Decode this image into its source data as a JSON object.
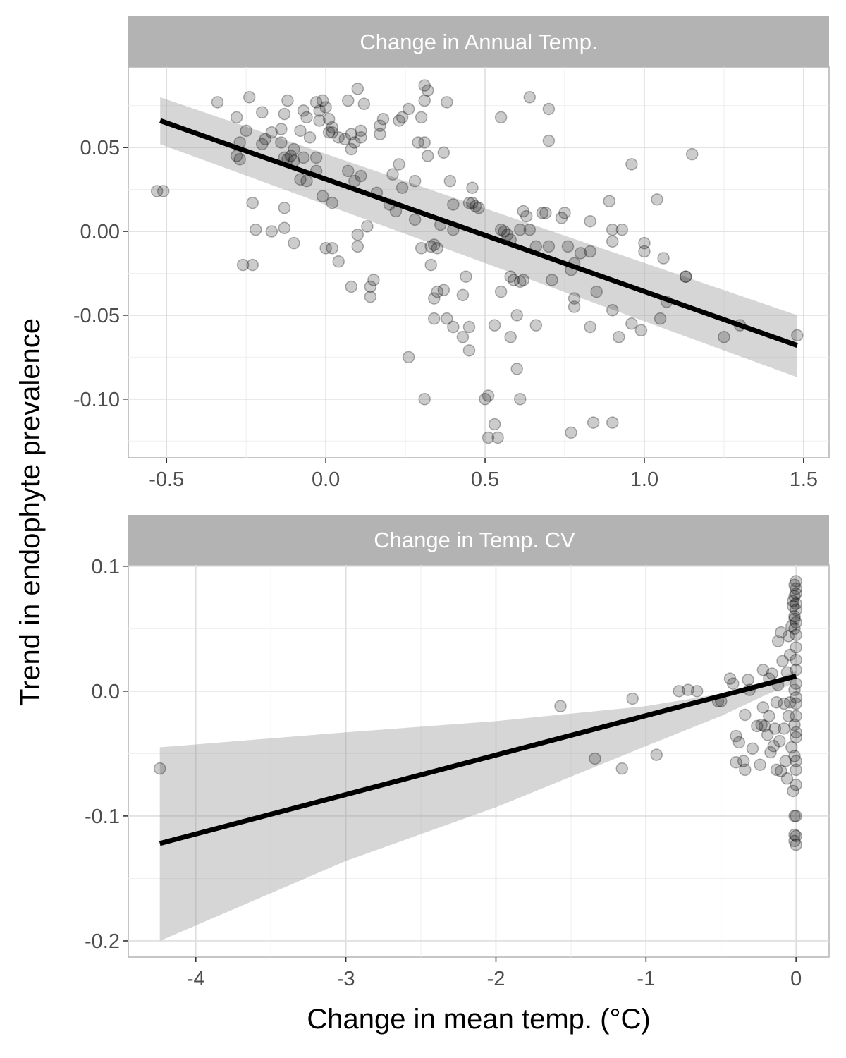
{
  "axes": {
    "ylabel": "Trend in endophyte prevalence",
    "xlabel": "Change in mean temp. (°C)"
  },
  "chart_data": [
    {
      "type": "scatter",
      "strip_title": "Change in Annual Temp.",
      "xlim": [
        -0.62,
        1.58
      ],
      "ylim": [
        -0.135,
        0.098
      ],
      "xticks": [
        -0.5,
        0.0,
        0.5,
        1.0,
        1.5
      ],
      "xtick_labels": [
        "-0.5",
        "0.0",
        "0.5",
        "1.0",
        "1.5"
      ],
      "yticks": [
        -0.1,
        -0.05,
        0.0,
        0.05
      ],
      "ytick_labels": [
        "-0.10",
        "-0.05",
        "0.00",
        "0.05"
      ],
      "fit": {
        "x": [
          -0.52,
          1.48
        ],
        "y": [
          0.066,
          -0.068
        ]
      },
      "ribbon": {
        "x": [
          -0.52,
          1.48
        ],
        "upper": [
          0.08,
          -0.05
        ],
        "lower": [
          0.052,
          -0.087
        ]
      },
      "points": [
        [
          -0.53,
          0.024
        ],
        [
          -0.51,
          0.024
        ],
        [
          -0.34,
          0.077
        ],
        [
          -0.28,
          0.068
        ],
        [
          -0.27,
          0.053
        ],
        [
          -0.25,
          0.06
        ],
        [
          -0.24,
          0.08
        ],
        [
          -0.28,
          0.045
        ],
        [
          -0.27,
          0.043
        ],
        [
          -0.23,
          0.017
        ],
        [
          -0.22,
          0.001
        ],
        [
          -0.26,
          -0.02
        ],
        [
          -0.23,
          -0.02
        ],
        [
          -0.2,
          0.071
        ],
        [
          -0.2,
          0.052
        ],
        [
          -0.19,
          0.055
        ],
        [
          -0.17,
          0.059
        ],
        [
          -0.17,
          0.0
        ],
        [
          -0.14,
          0.061
        ],
        [
          -0.13,
          0.07
        ],
        [
          -0.12,
          0.078
        ],
        [
          -0.11,
          0.045
        ],
        [
          -0.1,
          0.049
        ],
        [
          -0.14,
          0.053
        ],
        [
          -0.13,
          0.044
        ],
        [
          -0.12,
          0.043
        ],
        [
          -0.1,
          0.042
        ],
        [
          -0.13,
          0.014
        ],
        [
          -0.13,
          0.002
        ],
        [
          -0.1,
          -0.007
        ],
        [
          -0.08,
          0.06
        ],
        [
          -0.07,
          0.072
        ],
        [
          -0.06,
          0.068
        ],
        [
          -0.05,
          0.056
        ],
        [
          -0.03,
          0.077
        ],
        [
          -0.02,
          0.072
        ],
        [
          -0.02,
          0.066
        ],
        [
          -0.01,
          0.078
        ],
        [
          0.0,
          0.074
        ],
        [
          0.01,
          0.067
        ],
        [
          0.02,
          0.062
        ],
        [
          0.02,
          0.059
        ],
        [
          0.01,
          0.059
        ],
        [
          -0.03,
          0.044
        ],
        [
          -0.03,
          0.036
        ],
        [
          -0.06,
          0.03
        ],
        [
          -0.08,
          0.031
        ],
        [
          -0.07,
          0.044
        ],
        [
          -0.01,
          0.021
        ],
        [
          0.02,
          0.017
        ],
        [
          0.0,
          -0.01
        ],
        [
          0.02,
          -0.01
        ],
        [
          0.04,
          -0.018
        ],
        [
          0.04,
          0.056
        ],
        [
          0.06,
          0.055
        ],
        [
          0.08,
          0.049
        ],
        [
          0.08,
          0.058
        ],
        [
          0.09,
          0.053
        ],
        [
          0.1,
          0.085
        ],
        [
          0.07,
          0.078
        ],
        [
          0.12,
          0.076
        ],
        [
          0.11,
          0.06
        ],
        [
          0.11,
          0.056
        ],
        [
          0.07,
          0.036
        ],
        [
          0.09,
          0.03
        ],
        [
          0.11,
          0.033
        ],
        [
          0.1,
          -0.002
        ],
        [
          0.1,
          -0.009
        ],
        [
          0.13,
          0.003
        ],
        [
          0.08,
          -0.033
        ],
        [
          0.14,
          -0.033
        ],
        [
          0.15,
          -0.029
        ],
        [
          0.14,
          -0.039
        ],
        [
          0.16,
          0.023
        ],
        [
          0.17,
          0.058
        ],
        [
          0.18,
          0.067
        ],
        [
          0.17,
          0.063
        ],
        [
          0.21,
          0.034
        ],
        [
          0.23,
          0.04
        ],
        [
          0.23,
          0.066
        ],
        [
          0.24,
          0.068
        ],
        [
          0.26,
          0.073
        ],
        [
          0.24,
          0.026
        ],
        [
          0.2,
          0.016
        ],
        [
          0.22,
          0.012
        ],
        [
          0.26,
          -0.075
        ],
        [
          0.28,
          0.03
        ],
        [
          0.28,
          0.007
        ],
        [
          0.3,
          -0.01
        ],
        [
          0.29,
          0.053
        ],
        [
          0.3,
          0.068
        ],
        [
          0.31,
          0.087
        ],
        [
          0.31,
          0.078
        ],
        [
          0.32,
          0.084
        ],
        [
          0.31,
          0.053
        ],
        [
          0.32,
          0.045
        ],
        [
          0.34,
          -0.008
        ],
        [
          0.35,
          -0.01
        ],
        [
          0.33,
          -0.009
        ],
        [
          0.33,
          -0.02
        ],
        [
          0.35,
          -0.036
        ],
        [
          0.37,
          -0.035
        ],
        [
          0.34,
          -0.04
        ],
        [
          0.34,
          -0.052
        ],
        [
          0.31,
          -0.1
        ],
        [
          0.38,
          0.077
        ],
        [
          0.37,
          0.047
        ],
        [
          0.39,
          0.03
        ],
        [
          0.36,
          0.004
        ],
        [
          0.4,
          0.001
        ],
        [
          0.4,
          0.016
        ],
        [
          0.38,
          -0.052
        ],
        [
          0.4,
          -0.057
        ],
        [
          0.43,
          -0.038
        ],
        [
          0.43,
          -0.063
        ],
        [
          0.44,
          -0.027
        ],
        [
          0.45,
          -0.057
        ],
        [
          0.45,
          -0.071
        ],
        [
          0.46,
          0.026
        ],
        [
          0.46,
          0.017
        ],
        [
          0.45,
          0.017
        ],
        [
          0.48,
          0.014
        ],
        [
          0.47,
          0.015
        ],
        [
          0.5,
          -0.1
        ],
        [
          0.51,
          -0.098
        ],
        [
          0.51,
          -0.123
        ],
        [
          0.53,
          -0.115
        ],
        [
          0.54,
          -0.123
        ],
        [
          0.53,
          -0.056
        ],
        [
          0.55,
          -0.036
        ],
        [
          0.55,
          0.001
        ],
        [
          0.56,
          0.0
        ],
        [
          0.55,
          0.068
        ],
        [
          0.57,
          -0.002
        ],
        [
          0.58,
          -0.005
        ],
        [
          0.58,
          -0.027
        ],
        [
          0.59,
          -0.029
        ],
        [
          0.58,
          -0.063
        ],
        [
          0.6,
          -0.05
        ],
        [
          0.61,
          -0.03
        ],
        [
          0.6,
          -0.082
        ],
        [
          0.61,
          -0.1
        ],
        [
          0.61,
          0.001
        ],
        [
          0.62,
          0.012
        ],
        [
          0.63,
          0.009
        ],
        [
          0.62,
          -0.029
        ],
        [
          0.64,
          0.08
        ],
        [
          0.64,
          0.001
        ],
        [
          0.66,
          -0.009
        ],
        [
          0.66,
          -0.056
        ],
        [
          0.68,
          0.011
        ],
        [
          0.69,
          0.011
        ],
        [
          0.7,
          0.073
        ],
        [
          0.7,
          0.054
        ],
        [
          0.71,
          -0.029
        ],
        [
          0.7,
          -0.009
        ],
        [
          0.74,
          0.008
        ],
        [
          0.75,
          0.011
        ],
        [
          0.76,
          -0.009
        ],
        [
          0.77,
          -0.023
        ],
        [
          0.77,
          -0.12
        ],
        [
          0.78,
          -0.04
        ],
        [
          0.78,
          -0.045
        ],
        [
          0.78,
          -0.019
        ],
        [
          0.8,
          -0.013
        ],
        [
          0.83,
          -0.012
        ],
        [
          0.83,
          0.006
        ],
        [
          0.83,
          -0.057
        ],
        [
          0.84,
          -0.114
        ],
        [
          0.85,
          -0.036
        ],
        [
          0.89,
          0.018
        ],
        [
          0.9,
          -0.006
        ],
        [
          0.9,
          0.001
        ],
        [
          0.9,
          -0.047
        ],
        [
          0.9,
          -0.114
        ],
        [
          0.92,
          -0.063
        ],
        [
          0.93,
          0.001
        ],
        [
          0.96,
          0.04
        ],
        [
          0.96,
          -0.055
        ],
        [
          0.99,
          -0.059
        ],
        [
          1.0,
          -0.012
        ],
        [
          1.0,
          -0.007
        ],
        [
          1.04,
          0.019
        ],
        [
          1.05,
          -0.052
        ],
        [
          1.06,
          -0.016
        ],
        [
          1.07,
          -0.042
        ],
        [
          1.13,
          -0.027
        ],
        [
          1.13,
          -0.027
        ],
        [
          1.15,
          0.046
        ],
        [
          1.25,
          -0.063
        ],
        [
          1.3,
          -0.056
        ],
        [
          1.48,
          -0.062
        ]
      ]
    },
    {
      "type": "scatter",
      "strip_title": "Change in Temp. CV",
      "xlim": [
        -4.45,
        0.22
      ],
      "ylim": [
        -0.213,
        0.101
      ],
      "xticks": [
        -4,
        -3,
        -2,
        -1,
        0
      ],
      "xtick_labels": [
        "-4",
        "-3",
        "-2",
        "-1",
        "0"
      ],
      "yticks": [
        -0.2,
        -0.1,
        0.0,
        0.1
      ],
      "ytick_labels": [
        "-0.2",
        "-0.1",
        "0.0",
        "0.1"
      ],
      "fit": {
        "x": [
          -4.24,
          0.0
        ],
        "y": [
          -0.122,
          0.012
        ]
      },
      "ribbon": {
        "x": [
          -4.24,
          -3.0,
          -2.0,
          -1.0,
          -0.5,
          -0.2,
          0.0
        ],
        "upper": [
          -0.045,
          -0.033,
          -0.024,
          -0.012,
          -0.002,
          0.006,
          0.016
        ],
        "lower": [
          -0.2,
          -0.136,
          -0.093,
          -0.044,
          -0.02,
          -0.003,
          0.007
        ]
      },
      "points": [
        [
          -4.24,
          -0.062
        ],
        [
          -1.57,
          -0.012
        ],
        [
          -1.34,
          -0.054
        ],
        [
          -1.16,
          -0.062
        ],
        [
          -1.09,
          -0.006
        ],
        [
          -0.93,
          -0.051
        ],
        [
          -0.78,
          0.0
        ],
        [
          -0.72,
          0.001
        ],
        [
          -0.66,
          0.0
        ],
        [
          -0.52,
          -0.008
        ],
        [
          -0.5,
          -0.008
        ],
        [
          -0.44,
          0.01
        ],
        [
          -0.42,
          0.006
        ],
        [
          -0.4,
          -0.036
        ],
        [
          -0.4,
          -0.057
        ],
        [
          -0.38,
          -0.041
        ],
        [
          -0.35,
          -0.056
        ],
        [
          -0.34,
          -0.063
        ],
        [
          -0.34,
          -0.019
        ],
        [
          -0.32,
          0.009
        ],
        [
          -0.31,
          0.001
        ],
        [
          -0.29,
          -0.046
        ],
        [
          -0.26,
          -0.028
        ],
        [
          -0.24,
          -0.059
        ],
        [
          -0.23,
          -0.027
        ],
        [
          -0.22,
          0.017
        ],
        [
          -0.22,
          -0.013
        ],
        [
          -0.21,
          -0.028
        ],
        [
          -0.19,
          -0.035
        ],
        [
          -0.18,
          -0.02
        ],
        [
          -0.18,
          0.01
        ],
        [
          -0.16,
          0.014
        ],
        [
          -0.17,
          -0.049
        ],
        [
          -0.15,
          -0.044
        ],
        [
          -0.14,
          -0.03
        ],
        [
          -0.13,
          -0.009
        ],
        [
          -0.13,
          -0.063
        ],
        [
          -0.12,
          0.005
        ],
        [
          -0.12,
          0.04
        ],
        [
          -0.11,
          -0.04
        ],
        [
          -0.1,
          -0.064
        ],
        [
          -0.1,
          0.047
        ],
        [
          -0.09,
          0.024
        ],
        [
          -0.08,
          -0.01
        ],
        [
          -0.08,
          -0.03
        ],
        [
          -0.07,
          -0.056
        ],
        [
          -0.06,
          -0.07
        ],
        [
          -0.06,
          0.015
        ],
        [
          -0.05,
          0.044
        ],
        [
          -0.05,
          -0.02
        ],
        [
          -0.04,
          -0.009
        ],
        [
          -0.04,
          0.029
        ],
        [
          -0.03,
          0.052
        ],
        [
          -0.03,
          -0.045
        ],
        [
          -0.02,
          0.068
        ],
        [
          -0.02,
          0.072
        ],
        [
          -0.02,
          -0.08
        ],
        [
          -0.01,
          0.06
        ],
        [
          -0.01,
          0.076
        ],
        [
          -0.01,
          0.085
        ],
        [
          -0.01,
          0.058
        ],
        [
          -0.01,
          0.05
        ],
        [
          -0.01,
          0.001
        ],
        [
          -0.01,
          -0.027
        ],
        [
          -0.01,
          -0.052
        ],
        [
          -0.01,
          -0.1
        ],
        [
          -0.01,
          -0.115
        ],
        [
          -0.01,
          -0.12
        ],
        [
          0.0,
          0.088
        ],
        [
          0.0,
          0.082
        ],
        [
          0.0,
          0.078
        ],
        [
          0.0,
          0.07
        ],
        [
          0.0,
          0.065
        ],
        [
          0.0,
          0.055
        ],
        [
          0.0,
          0.045
        ],
        [
          0.0,
          0.035
        ],
        [
          0.0,
          0.025
        ],
        [
          0.0,
          0.017
        ],
        [
          0.0,
          0.006
        ],
        [
          0.0,
          -0.005
        ],
        [
          0.0,
          -0.01
        ],
        [
          0.0,
          -0.02
        ],
        [
          0.0,
          -0.033
        ],
        [
          0.0,
          -0.037
        ],
        [
          0.0,
          -0.056
        ],
        [
          0.0,
          -0.063
        ],
        [
          0.0,
          -0.075
        ],
        [
          0.0,
          -0.1
        ],
        [
          0.0,
          -0.116
        ],
        [
          0.0,
          -0.123
        ]
      ]
    }
  ]
}
